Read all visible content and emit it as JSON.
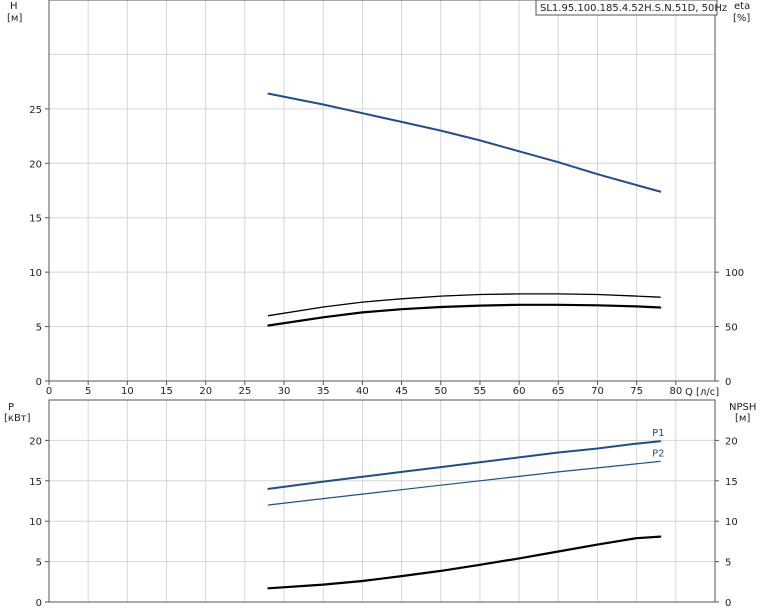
{
  "model_label": "SL1.95.100.185.4.52H.S.N.51D, 50Hz",
  "colors": {
    "blue": "#1f4f8b",
    "black": "#000000",
    "grid": "#d6d6d6",
    "axis": "#555555"
  },
  "chart_data": [
    {
      "type": "line",
      "title": "",
      "y_left_label": "H",
      "y_left_unit": "[м]",
      "y_right_label": "eta",
      "y_right_unit": "[%]",
      "xlabel": "Q [л/с]",
      "xlim": [
        0,
        85
      ],
      "x_ticks": [
        0,
        5,
        10,
        15,
        20,
        25,
        30,
        35,
        40,
        45,
        50,
        55,
        60,
        65,
        70,
        75,
        80
      ],
      "ylim": [
        0,
        35
      ],
      "y_left_ticks": [
        0,
        5,
        10,
        15,
        20,
        25
      ],
      "y_right_ticks_values": [
        0,
        50,
        100
      ],
      "y_right_ticks_positions_left_units": [
        0,
        5,
        10
      ],
      "grid": true,
      "series": [
        {
          "name": "",
          "color": "#1f4f8b",
          "width": 2,
          "x": [
            28,
            35,
            40,
            45,
            50,
            55,
            60,
            65,
            70,
            75,
            78
          ],
          "y": [
            26.4,
            25.4,
            24.6,
            23.8,
            23.0,
            22.1,
            21.1,
            20.1,
            19.0,
            18.0,
            17.4
          ]
        },
        {
          "name": "",
          "color": "#000000",
          "width": 1.3,
          "x": [
            28,
            35,
            40,
            45,
            50,
            55,
            60,
            65,
            70,
            75,
            78
          ],
          "y": [
            6.0,
            6.8,
            7.25,
            7.55,
            7.8,
            7.95,
            8.0,
            8.0,
            7.95,
            7.8,
            7.7
          ]
        },
        {
          "name": "",
          "color": "#000000",
          "width": 2.2,
          "x": [
            28,
            35,
            40,
            45,
            50,
            55,
            60,
            65,
            70,
            75,
            78
          ],
          "y": [
            5.1,
            5.85,
            6.3,
            6.6,
            6.8,
            6.93,
            7.0,
            7.0,
            6.95,
            6.85,
            6.75
          ]
        }
      ]
    },
    {
      "type": "line",
      "title": "",
      "y_left_label": "P",
      "y_left_unit": "[кВт]",
      "y_right_label": "NPSH",
      "y_right_unit": "[м]",
      "xlim": [
        0,
        85
      ],
      "ylim": [
        0,
        25
      ],
      "y_left_ticks": [
        0,
        5,
        10,
        15,
        20
      ],
      "y_right_ticks": [
        0,
        5,
        10,
        15,
        20
      ],
      "grid": true,
      "series": [
        {
          "name": "P1",
          "color": "#1f4f8b",
          "width": 2,
          "x": [
            28,
            35,
            40,
            45,
            50,
            55,
            60,
            65,
            70,
            75,
            78
          ],
          "y": [
            14.0,
            14.9,
            15.5,
            16.1,
            16.7,
            17.3,
            17.9,
            18.5,
            19.0,
            19.6,
            19.9
          ]
        },
        {
          "name": "P2",
          "color": "#1f4f8b",
          "width": 1.2,
          "x": [
            28,
            35,
            40,
            45,
            50,
            55,
            60,
            65,
            70,
            75,
            78
          ],
          "y": [
            12.0,
            12.8,
            13.35,
            13.9,
            14.45,
            15.0,
            15.55,
            16.1,
            16.6,
            17.1,
            17.4
          ]
        },
        {
          "name": "",
          "color": "#000000",
          "width": 2.2,
          "x": [
            28,
            35,
            40,
            45,
            50,
            55,
            60,
            65,
            70,
            75,
            78
          ],
          "y": [
            1.7,
            2.15,
            2.6,
            3.2,
            3.85,
            4.6,
            5.4,
            6.25,
            7.1,
            7.9,
            8.1
          ]
        }
      ]
    }
  ]
}
